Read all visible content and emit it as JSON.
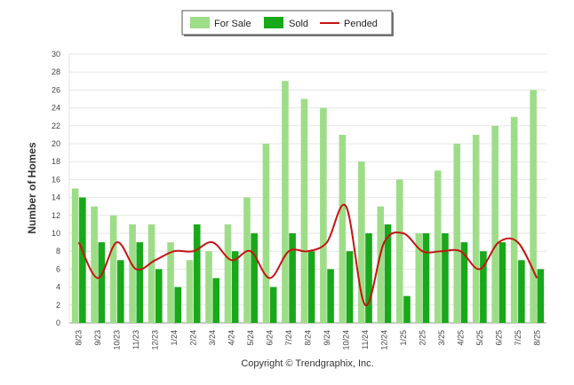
{
  "colors": {
    "for_sale": "#9edd88",
    "sold": "#19a819",
    "pended": "#c41414",
    "grid": "#e6e6e6",
    "axis": "#999999"
  },
  "footer": {
    "copyright": "Copyright © Trendgraphix, Inc."
  },
  "chart_data": {
    "type": "bar",
    "ylabel": "Number of Homes",
    "xlabel": "",
    "ylim": [
      0,
      30
    ],
    "yticks": [
      0,
      2,
      4,
      6,
      8,
      10,
      12,
      14,
      16,
      18,
      20,
      22,
      24,
      26,
      28,
      30
    ],
    "grid": true,
    "legend_position": "top-center",
    "categories": [
      "8/23",
      "9/23",
      "10/23",
      "11/23",
      "12/23",
      "1/24",
      "2/24",
      "3/24",
      "4/24",
      "5/24",
      "6/24",
      "7/24",
      "8/24",
      "9/24",
      "10/24",
      "11/24",
      "12/24",
      "1/25",
      "2/25",
      "3/25",
      "4/25",
      "5/25",
      "6/25",
      "7/25",
      "8/25"
    ],
    "series": [
      {
        "name": "For Sale",
        "kind": "bar",
        "values": [
          15,
          13,
          12,
          11,
          11,
          9,
          7,
          8,
          11,
          14,
          20,
          27,
          25,
          24,
          21,
          18,
          13,
          16,
          10,
          17,
          20,
          21,
          22,
          23,
          26
        ]
      },
      {
        "name": "Sold",
        "kind": "bar",
        "values": [
          14,
          9,
          7,
          9,
          6,
          4,
          11,
          5,
          8,
          10,
          4,
          10,
          8,
          6,
          8,
          10,
          11,
          3,
          10,
          10,
          9,
          8,
          9,
          7,
          6
        ]
      },
      {
        "name": "Pended",
        "kind": "line",
        "values": [
          9,
          5,
          9,
          6,
          7,
          8,
          8,
          9,
          7,
          8,
          5,
          8,
          8,
          9,
          13,
          2,
          9,
          10,
          8,
          8,
          8,
          6,
          9,
          9,
          5
        ]
      }
    ]
  }
}
